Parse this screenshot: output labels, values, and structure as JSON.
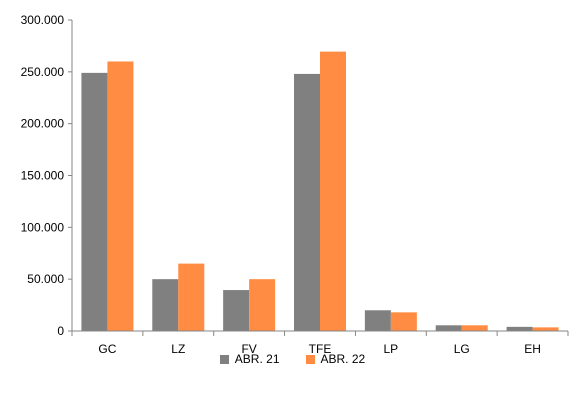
{
  "chart_data": {
    "type": "bar",
    "categories": [
      "GC",
      "LZ",
      "FV",
      "TFE",
      "LP",
      "LG",
      "EH"
    ],
    "series": [
      {
        "name": "ABR. 21",
        "values": [
          249000,
          50000,
          39500,
          248000,
          20000,
          5500,
          4000
        ],
        "color": "#808080"
      },
      {
        "name": "ABR. 22",
        "values": [
          260000,
          65000,
          50000,
          269500,
          18000,
          5500,
          3500
        ],
        "color": "#ff8c42"
      }
    ],
    "yticks": [
      "0",
      "50.000",
      "100.000",
      "150.000",
      "200.000",
      "250.000",
      "300.000"
    ],
    "ylim": [
      0,
      300000
    ],
    "title": "",
    "xlabel": "",
    "ylabel": "",
    "grid": false,
    "legend": "bottom-center"
  }
}
